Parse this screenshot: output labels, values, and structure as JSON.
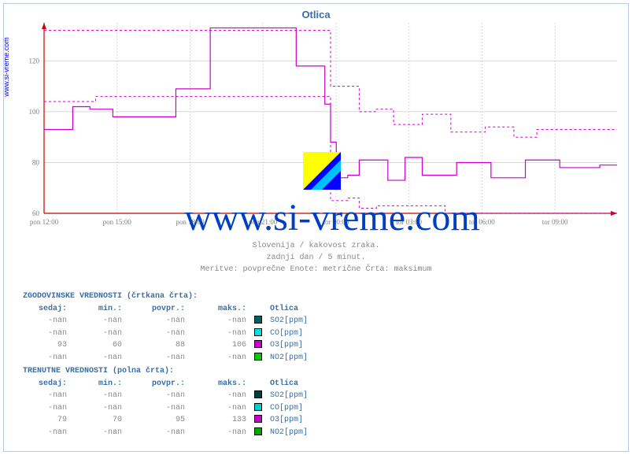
{
  "site_label": "www.si-vreme.com",
  "chart": {
    "title": "Otlica",
    "watermark_text": "www.si-vreme.com",
    "logo_colors": {
      "tl": "#ffff00",
      "diag": "#00bfff",
      "br": "#0000ff"
    },
    "plot": {
      "background": "#ffffff",
      "grid_color": "#d8d8d8",
      "axis_color": "#808080",
      "arrow_color": "#cc0000",
      "text_color": "#808080",
      "font_size": 9,
      "ylim": [
        60,
        135
      ],
      "yticks": [
        60,
        80,
        100,
        120
      ],
      "xlabels": [
        "pon 12:00",
        "pon 15:00",
        "pon 18:00",
        "pon 21:00",
        "tor 00:00",
        "tor 03:00",
        "tor 06:00",
        "tor 09:00"
      ],
      "xcount": 8,
      "major_every": 3
    },
    "series_solid": {
      "color": "#cc00cc",
      "width": 1.2,
      "dash": "none",
      "points": [
        [
          0.0,
          93
        ],
        [
          0.05,
          93
        ],
        [
          0.05,
          102
        ],
        [
          0.08,
          102
        ],
        [
          0.08,
          101
        ],
        [
          0.12,
          101
        ],
        [
          0.12,
          98
        ],
        [
          0.23,
          98
        ],
        [
          0.23,
          109
        ],
        [
          0.29,
          109
        ],
        [
          0.29,
          133
        ],
        [
          0.44,
          133
        ],
        [
          0.44,
          118
        ],
        [
          0.49,
          118
        ],
        [
          0.49,
          103
        ],
        [
          0.5,
          103
        ],
        [
          0.5,
          88
        ],
        [
          0.51,
          88
        ],
        [
          0.51,
          74
        ],
        [
          0.53,
          74
        ],
        [
          0.53,
          75
        ],
        [
          0.55,
          75
        ],
        [
          0.55,
          81
        ],
        [
          0.6,
          81
        ],
        [
          0.6,
          73
        ],
        [
          0.63,
          73
        ],
        [
          0.63,
          82
        ],
        [
          0.66,
          82
        ],
        [
          0.66,
          75
        ],
        [
          0.72,
          75
        ],
        [
          0.72,
          80
        ],
        [
          0.78,
          80
        ],
        [
          0.78,
          74
        ],
        [
          0.84,
          74
        ],
        [
          0.84,
          81
        ],
        [
          0.9,
          81
        ],
        [
          0.9,
          78
        ],
        [
          0.97,
          78
        ],
        [
          0.97,
          79
        ],
        [
          1.0,
          79
        ]
      ]
    },
    "series_dashed": {
      "color": "#cc00cc",
      "width": 1,
      "dash": "3,3",
      "points": [
        [
          0.0,
          132
        ],
        [
          0.5,
          132
        ],
        [
          0.5,
          110
        ],
        [
          0.55,
          110
        ],
        [
          0.55,
          100
        ],
        [
          0.58,
          100
        ],
        [
          0.58,
          101
        ],
        [
          0.61,
          101
        ],
        [
          0.61,
          95
        ],
        [
          0.66,
          95
        ],
        [
          0.66,
          99
        ],
        [
          0.71,
          99
        ],
        [
          0.71,
          92
        ],
        [
          0.77,
          92
        ],
        [
          0.77,
          94
        ],
        [
          0.82,
          94
        ],
        [
          0.82,
          90
        ],
        [
          0.86,
          90
        ],
        [
          0.86,
          93
        ],
        [
          1.0,
          93
        ]
      ]
    },
    "series_dashed2": {
      "color": "#cc00cc",
      "width": 1,
      "dash": "3,3",
      "points": [
        [
          0.0,
          104
        ],
        [
          0.09,
          104
        ],
        [
          0.09,
          106
        ],
        [
          0.5,
          106
        ],
        [
          0.5,
          65
        ],
        [
          0.53,
          65
        ],
        [
          0.53,
          66
        ],
        [
          0.55,
          66
        ],
        [
          0.55,
          62
        ],
        [
          0.58,
          62
        ],
        [
          0.58,
          63
        ],
        [
          0.7,
          63
        ],
        [
          0.7,
          60
        ],
        [
          1.0,
          60
        ]
      ]
    },
    "caption_lines": [
      "Slovenija / kakovost zraka.",
      "zadnji dan / 5 minut.",
      "Meritve: povprečne  Enote: metrične  Črta: maksimum"
    ]
  },
  "legend": {
    "hist_title": "ZGODOVINSKE VREDNOSTI (črtkana črta):",
    "curr_title": "TRENUTNE VREDNOSTI (polna črta):",
    "columns": [
      "sedaj:",
      "min.:",
      "povpr.:",
      "maks.:",
      "Otlica"
    ],
    "hist_rows": [
      {
        "sedaj": "-nan",
        "min": "-nan",
        "povpr": "-nan",
        "maks": "-nan",
        "color": "#006060",
        "name": "SO2[ppm]"
      },
      {
        "sedaj": "-nan",
        "min": "-nan",
        "povpr": "-nan",
        "maks": "-nan",
        "color": "#00e0e0",
        "name": "CO[ppm]"
      },
      {
        "sedaj": "93",
        "min": "60",
        "povpr": "88",
        "maks": "106",
        "color": "#cc00cc",
        "name": "O3[ppm]"
      },
      {
        "sedaj": "-nan",
        "min": "-nan",
        "povpr": "-nan",
        "maks": "-nan",
        "color": "#00cc00",
        "name": "NO2[ppm]"
      }
    ],
    "curr_rows": [
      {
        "sedaj": "-nan",
        "min": "-nan",
        "povpr": "-nan",
        "maks": "-nan",
        "color": "#004040",
        "name": "SO2[ppm]"
      },
      {
        "sedaj": "-nan",
        "min": "-nan",
        "povpr": "-nan",
        "maks": "-nan",
        "color": "#00cccc",
        "name": "CO[ppm]"
      },
      {
        "sedaj": "79",
        "min": "70",
        "povpr": "95",
        "maks": "133",
        "color": "#cc00cc",
        "name": "O3[ppm]"
      },
      {
        "sedaj": "-nan",
        "min": "-nan",
        "povpr": "-nan",
        "maks": "-nan",
        "color": "#00aa00",
        "name": "NO2[ppm]"
      }
    ]
  }
}
